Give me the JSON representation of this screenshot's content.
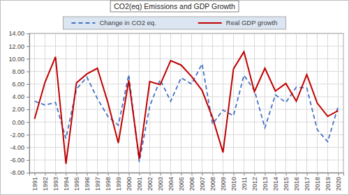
{
  "chart_data": {
    "type": "line",
    "title": "CO2(eq) Emissions and GDP Growth",
    "categories": [
      "1991",
      "1992",
      "1993",
      "1994",
      "1995",
      "1996",
      "1997",
      "1998",
      "1999",
      "2000",
      "2001",
      "2002",
      "2003",
      "2004",
      "2005",
      "2006",
      "2007",
      "2008",
      "2009",
      "2010",
      "2011",
      "2012",
      "2013",
      "2014",
      "2015",
      "2016",
      "2017",
      "2018",
      "2019",
      "2020"
    ],
    "series": [
      {
        "name": "Change in CO2 eq.",
        "color": "#4472c4",
        "line_style": "dashed",
        "values": [
          3.3,
          2.7,
          3.1,
          -2.6,
          5.2,
          7.1,
          3.7,
          0.9,
          -0.5,
          7.5,
          -6.3,
          2.5,
          6.7,
          3.3,
          7.0,
          6.0,
          9.2,
          -0.3,
          1.9,
          1.0,
          7.4,
          5.0,
          -0.9,
          4.3,
          3.1,
          5.5,
          5.4,
          -1.2,
          -3.1,
          2.5
        ]
      },
      {
        "name": "Real GDP growth",
        "color": "#c00000",
        "line_style": "solid",
        "values": [
          0.5,
          6.3,
          10.3,
          -6.6,
          6.2,
          7.6,
          8.5,
          3.1,
          -3.3,
          6.6,
          -5.8,
          6.4,
          5.9,
          9.7,
          9.0,
          7.2,
          5.0,
          0.7,
          -4.8,
          8.4,
          11.1,
          4.8,
          8.5,
          4.9,
          6.1,
          3.3,
          7.5,
          3.0,
          0.9,
          1.8
        ]
      }
    ],
    "ylim": [
      -8,
      14
    ],
    "yticks": [
      {
        "value": -8,
        "label": "-8.00"
      },
      {
        "value": -6,
        "label": "-6.00"
      },
      {
        "value": -4,
        "label": "-4.00"
      },
      {
        "value": -2,
        "label": "-2.00"
      },
      {
        "value": 0,
        "label": "0.00"
      },
      {
        "value": 2,
        "label": "2.00"
      },
      {
        "value": 4,
        "label": "4.00"
      },
      {
        "value": 6,
        "label": "6.00"
      },
      {
        "value": 8,
        "label": "8.00"
      },
      {
        "value": 10,
        "label": "10.00"
      },
      {
        "value": 12,
        "label": "12.00"
      },
      {
        "value": 14,
        "label": "14.00"
      }
    ],
    "grid": true,
    "legend": "top"
  }
}
